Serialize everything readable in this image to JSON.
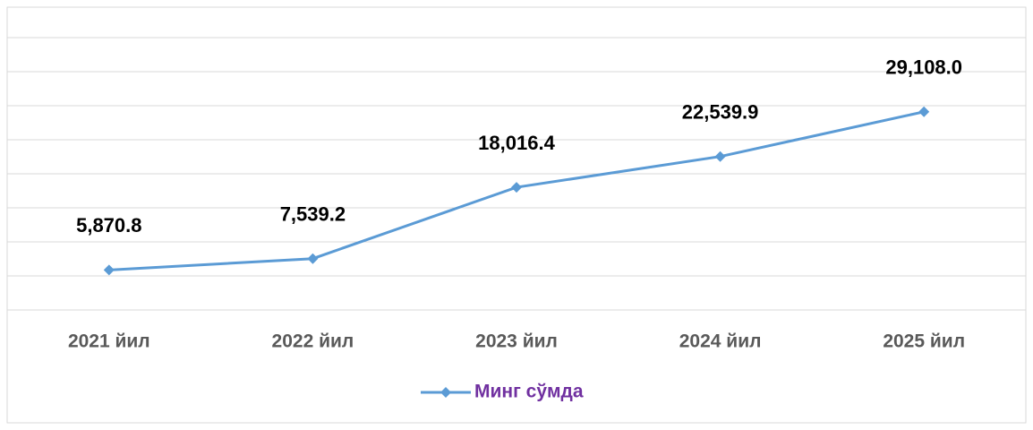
{
  "chart_data": {
    "type": "line",
    "categories": [
      "2021 йил",
      "2022 йил",
      "2023 йил",
      "2024 йил",
      "2025 йил"
    ],
    "series": [
      {
        "name": "Минг сўмда",
        "color": "#5b9bd5",
        "values": [
          5870.8,
          7539.2,
          18016.4,
          22539.9,
          29108.0
        ],
        "value_labels": [
          "5,870.8",
          "7,539.2",
          "18,016.4",
          "22,539.9",
          "29,108.0"
        ]
      }
    ],
    "ylim": [
      0,
      40000
    ],
    "yticks": [
      0,
      5000,
      10000,
      15000,
      20000,
      25000,
      30000,
      35000,
      40000
    ],
    "grid": true,
    "legend": "bottom"
  }
}
